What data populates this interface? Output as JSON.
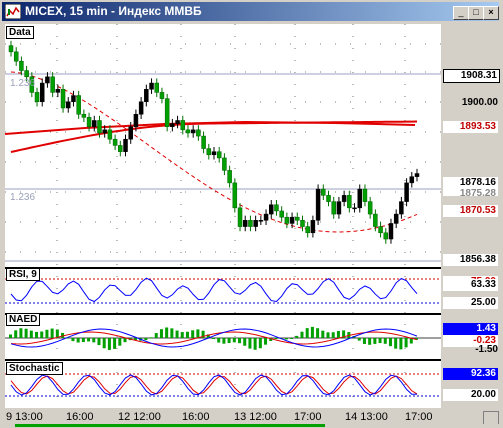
{
  "window": {
    "title": "MICEX, 15 min - Индекс ММВБ"
  },
  "panels": {
    "data": "Data",
    "rsi": "RSI, 9",
    "naed": "NAED",
    "stochastic": "Stochastic"
  },
  "price_axis": {
    "labels": [
      "1908.31",
      "1900.00",
      "1893.53",
      "1878.16",
      "1870.53",
      "1856.38"
    ],
    "hidden_label": "1875.28",
    "fib_labels": [
      "1.236",
      "1.236"
    ]
  },
  "rsi_axis": {
    "labels": [
      "63.33",
      "25.00"
    ],
    "faded": "75.00"
  },
  "naed_axis": {
    "labels": [
      "1.43",
      "-0.23",
      "-1.50"
    ]
  },
  "stoch_axis": {
    "labels": [
      "92.36",
      "20.00"
    ]
  },
  "time_axis": [
    "9 13:00",
    "16:00",
    "12 12:00",
    "16:00",
    "13 12:00",
    "17:00",
    "14 13:00",
    "17:00"
  ],
  "colors": {
    "up": "#000000",
    "down": "#00a000",
    "ma_red": "#e00000",
    "blue": "#0000ff",
    "accent": "#0a246a"
  },
  "chart_data": {
    "type": "candlestick",
    "instrument": "MICEX",
    "timeframe": "15 min",
    "ylim": [
      1850,
      1925
    ],
    "closes": [
      1918,
      1915,
      1912,
      1910,
      1905,
      1902,
      1908,
      1910,
      1905,
      1906,
      1900,
      1902,
      1904,
      1898,
      1897,
      1894,
      1896,
      1892,
      1893,
      1890,
      1888,
      1886,
      1890,
      1894,
      1898,
      1902,
      1906,
      1908,
      1905,
      1903,
      1894,
      1895,
      1896,
      1893,
      1892,
      1893,
      1891,
      1887,
      1885,
      1886,
      1884,
      1880,
      1876,
      1868,
      1862,
      1864,
      1862,
      1864,
      1864,
      1866,
      1869,
      1867,
      1865,
      1863,
      1865,
      1864,
      1862,
      1860,
      1864,
      1874,
      1872,
      1870,
      1866,
      1870,
      1872,
      1868,
      1868,
      1874,
      1870,
      1866,
      1862,
      1860,
      1858,
      1863,
      1866,
      1870,
      1876,
      1878,
      1879
    ]
  }
}
